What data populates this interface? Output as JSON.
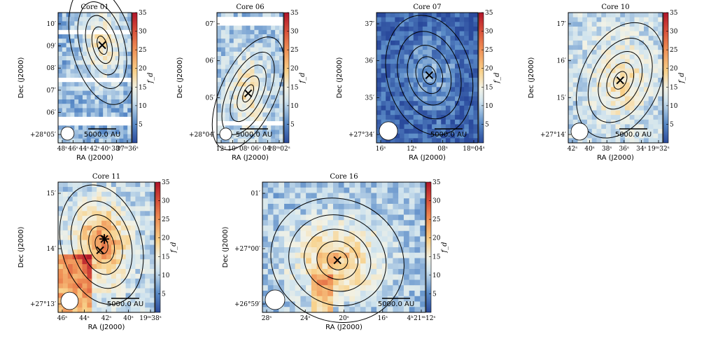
{
  "figure": {
    "ylabel": "Dec (J2000)",
    "xlabel": "RA (J2000)",
    "colorbar_label": "f_d",
    "colorbar_ticks": [
      5,
      10,
      15,
      20,
      25,
      30,
      35
    ],
    "colorbar_range": [
      0,
      35
    ],
    "colors": {
      "low": "#2a4a9c",
      "mid": "#f2f2e6",
      "high": "#c0202a"
    }
  },
  "chart_data": [
    {
      "type": "heatmap",
      "title": "Core 01",
      "scale_label": "5000.0 AU",
      "marker": "x",
      "xticks": [
        "48ˢ",
        "46ˢ",
        "44ˢ",
        "42ˢ",
        "40ˢ",
        "38ˢ",
        "37ᵐ36ˢ"
      ],
      "yticks": [
        "+28°05′",
        "06′",
        "07′",
        "08′",
        "09′",
        "10′"
      ],
      "field_level": 8,
      "peak": {
        "x": 0.6,
        "y": 0.25,
        "value": 16
      },
      "blanks": [
        0.15,
        0.52,
        0.84
      ]
    },
    {
      "type": "heatmap",
      "title": "Core 06",
      "scale_label": "5000.0 AU",
      "marker": "x",
      "xticks": [
        "12ˢ",
        "10ˢ",
        "08ˢ",
        "06ˢ",
        "04ˢ",
        "18ᵐ02ˢ"
      ],
      "yticks": [
        "+28°04′",
        "05′",
        "06′",
        "07′"
      ],
      "field_level": 9,
      "peak": {
        "x": 0.47,
        "y": 0.62,
        "value": 17
      },
      "blanks": [
        0.07,
        0.85
      ]
    },
    {
      "type": "heatmap",
      "title": "Core 07",
      "scale_label": "5000.0 AU",
      "marker": "x",
      "xticks": [
        "16ˢ",
        "12ˢ",
        "08ˢ",
        "18ᵐ04ˢ"
      ],
      "yticks": [
        "+27°34′",
        "35′",
        "36′",
        "37′"
      ],
      "field_level": 2,
      "peak": {
        "x": 0.52,
        "y": 0.48,
        "value": 7
      },
      "blanks": []
    },
    {
      "type": "heatmap",
      "title": "Core 10",
      "scale_label": "5000.0 AU",
      "marker": "x",
      "xticks": [
        "42ˢ",
        "40ˢ",
        "38ˢ",
        "36ˢ",
        "34ˢ",
        "19ᵐ32ˢ"
      ],
      "yticks": [
        "+27°14′",
        "15′",
        "16′",
        "17′"
      ],
      "field_level": 11,
      "peak": {
        "x": 0.55,
        "y": 0.52,
        "value": 17
      },
      "blanks": []
    },
    {
      "type": "heatmap",
      "title": "Core 11",
      "scale_label": "5000.0 AU",
      "marker": "star+x",
      "xticks": [
        "46ˢ",
        "44ˢ",
        "42ˢ",
        "40ˢ",
        "19ᵐ38ˢ"
      ],
      "yticks": [
        "+27°13′",
        "14′",
        "15′"
      ],
      "field_level": 10,
      "peak": {
        "x": 0.45,
        "y": 0.48,
        "value": 24
      },
      "blanks": []
    },
    {
      "type": "heatmap",
      "title": "Core 16",
      "scale_label": "5000.0 AU",
      "marker": "x",
      "xticks": [
        "28ˢ",
        "24ˢ",
        "20ˢ",
        "16ˢ",
        "4ʰ21ᵐ12ˢ"
      ],
      "yticks": [
        "+26°59′",
        "+27°00′",
        "01′"
      ],
      "field_level": 9,
      "peak": {
        "x": 0.46,
        "y": 0.6,
        "value": 20
      },
      "blanks": []
    }
  ]
}
